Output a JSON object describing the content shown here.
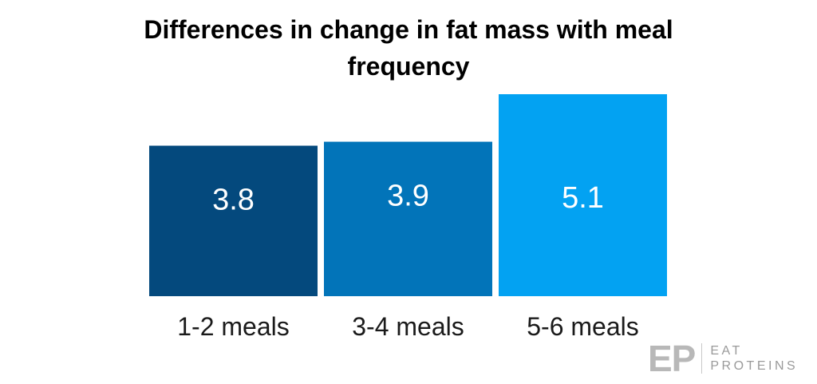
{
  "chart_data": {
    "type": "bar",
    "title": "Differences in change in fat mass with meal frequency",
    "title_lines": [
      "Differences in change in fat mass with meal",
      "frequency"
    ],
    "categories": [
      "1-2 meals",
      "3-4 meals",
      "5-6 meals"
    ],
    "values": [
      3.8,
      3.9,
      5.1
    ],
    "value_labels": [
      "3.8",
      "3.9",
      "5.1"
    ],
    "colors": [
      "#04497d",
      "#0274b9",
      "#03a2f2"
    ],
    "xlabel": "",
    "ylabel": "",
    "ylim": [
      0,
      5.1
    ],
    "grid": false,
    "legend": "none"
  },
  "logo": {
    "mark": "EP",
    "line1": "EAT",
    "line2": "PROTEINS"
  }
}
